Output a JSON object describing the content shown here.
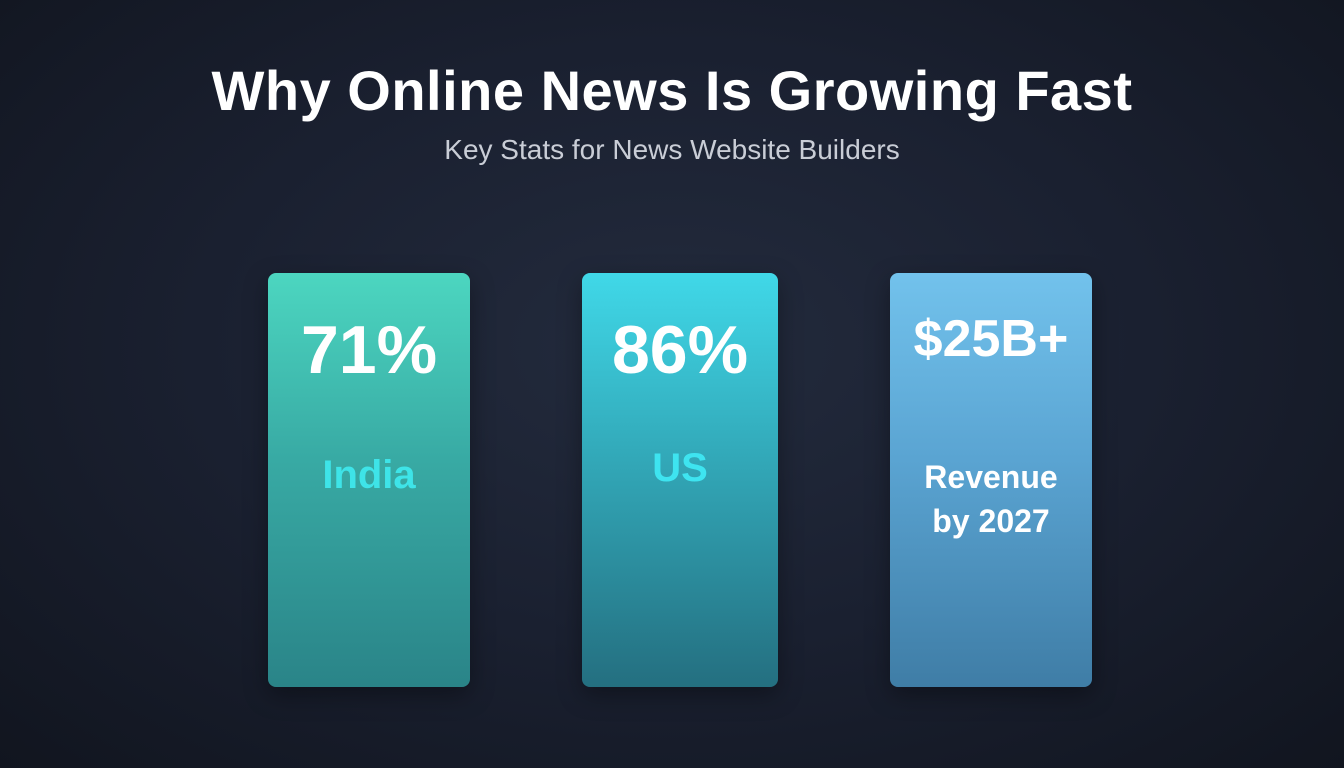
{
  "header": {
    "title": "Why Online News Is Growing Fast",
    "subtitle": "Key Stats for News Website Builders"
  },
  "cards": [
    {
      "value": "71%",
      "label": "India"
    },
    {
      "value": "86%",
      "label": "US"
    },
    {
      "value": "$25B+",
      "label": "Revenue by 2027"
    }
  ]
}
